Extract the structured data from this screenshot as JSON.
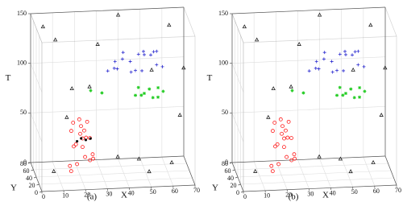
{
  "chart_data": [
    {
      "type": "scatter3d",
      "caption": "(a)",
      "xlabel": "X",
      "ylabel": "Y",
      "zlabel": "T",
      "xlim": [
        0,
        70
      ],
      "ylim": [
        0,
        80
      ],
      "zlim": [
        0,
        150
      ],
      "xticks": [
        0,
        10,
        20,
        30,
        40,
        50,
        60,
        70
      ],
      "yticks": [
        0,
        20,
        40,
        60,
        80
      ],
      "zticks": [
        0,
        50,
        100,
        150
      ],
      "grid": true,
      "series": [
        {
          "color": "#2b2bd0",
          "marker": "plus",
          "x": [
            35,
            40,
            45,
            50,
            55,
            38,
            42,
            48,
            53,
            58,
            36,
            44,
            52,
            47,
            41,
            56,
            33,
            49
          ],
          "y": [
            30,
            45,
            35,
            50,
            40,
            55,
            25,
            60,
            30,
            45,
            40,
            50,
            35,
            20,
            65,
            55,
            45,
            40
          ],
          "z": [
            110,
            120,
            105,
            115,
            108,
            100,
            118,
            112,
            125,
            104,
            113,
            98,
            120,
            110,
            106,
            116,
            102,
            122
          ]
        },
        {
          "color": "#22cc22",
          "marker": "star",
          "x": [
            45,
            48,
            52,
            55,
            58,
            50,
            47,
            53,
            56,
            30,
            25
          ],
          "y": [
            35,
            40,
            45,
            30,
            40,
            50,
            45,
            35,
            45,
            40,
            42
          ],
          "z": [
            80,
            78,
            82,
            79,
            81,
            76,
            84,
            77,
            83,
            82,
            84
          ]
        },
        {
          "color": "#ff1a1a",
          "marker": "circle",
          "x": [
            15,
            18,
            22,
            25,
            17,
            20,
            24,
            16,
            21,
            23,
            19,
            15,
            25,
            18,
            22,
            20,
            16,
            24,
            21,
            19
          ],
          "y": [
            25,
            30,
            35,
            28,
            38,
            22,
            32,
            40,
            26,
            36,
            30,
            34,
            24,
            38,
            28,
            33,
            27,
            31,
            37,
            23
          ],
          "z": [
            10,
            15,
            20,
            25,
            30,
            35,
            40,
            45,
            50,
            55,
            60,
            12,
            22,
            32,
            42,
            52,
            58,
            18,
            38,
            48
          ]
        },
        {
          "color": "#111111",
          "marker": "dot",
          "x": [
            18,
            20,
            22,
            24
          ],
          "y": [
            30,
            32,
            30,
            28
          ],
          "z": [
            38,
            40,
            39,
            41
          ]
        },
        {
          "color": "#222222",
          "marker": "triangle",
          "x": [
            5,
            10,
            15,
            60,
            65,
            55,
            30,
            35,
            68,
            8,
            45,
            62,
            25,
            50,
            12,
            40
          ],
          "y": [
            70,
            60,
            20,
            10,
            30,
            75,
            70,
            5,
            50,
            40,
            10,
            60,
            50,
            15,
            10,
            80
          ],
          "z": [
            140,
            130,
            95,
            20,
            60,
            90,
            120,
            30,
            100,
            5,
            25,
            140,
            85,
            10,
            70,
            145
          ]
        }
      ]
    },
    {
      "type": "scatter3d",
      "caption": "(b)",
      "xlabel": "X",
      "ylabel": "Y",
      "zlabel": "T",
      "xlim": [
        0,
        70
      ],
      "ylim": [
        0,
        80
      ],
      "zlim": [
        0,
        150
      ],
      "xticks": [
        0,
        10,
        20,
        30,
        40,
        50,
        60,
        70
      ],
      "yticks": [
        0,
        20,
        40,
        60,
        80
      ],
      "zticks": [
        0,
        50,
        100,
        150
      ],
      "grid": true,
      "series": [
        {
          "color": "#2b2bd0",
          "marker": "plus",
          "x": [
            35,
            40,
            45,
            50,
            55,
            38,
            42,
            48,
            53,
            58,
            36,
            44,
            52,
            47,
            41,
            56,
            33,
            49
          ],
          "y": [
            30,
            45,
            35,
            50,
            40,
            55,
            25,
            60,
            30,
            45,
            40,
            50,
            35,
            20,
            65,
            55,
            45,
            40
          ],
          "z": [
            110,
            120,
            105,
            115,
            108,
            100,
            118,
            112,
            125,
            104,
            113,
            98,
            120,
            110,
            106,
            116,
            102,
            122
          ]
        },
        {
          "color": "#22cc22",
          "marker": "star",
          "x": [
            45,
            48,
            52,
            55,
            58,
            50,
            47,
            53,
            56,
            30,
            25
          ],
          "y": [
            35,
            40,
            45,
            30,
            40,
            50,
            45,
            35,
            45,
            40,
            42
          ],
          "z": [
            80,
            78,
            82,
            79,
            81,
            76,
            84,
            77,
            83,
            82,
            84
          ]
        },
        {
          "color": "#ff1a1a",
          "marker": "circle",
          "x": [
            15,
            18,
            22,
            25,
            17,
            20,
            24,
            16,
            21,
            23,
            19,
            15,
            25,
            18,
            22,
            20,
            16,
            24,
            21,
            19
          ],
          "y": [
            25,
            30,
            35,
            28,
            38,
            22,
            32,
            40,
            26,
            36,
            30,
            34,
            24,
            38,
            28,
            33,
            27,
            31,
            37,
            23
          ],
          "z": [
            10,
            15,
            20,
            25,
            30,
            35,
            40,
            45,
            50,
            55,
            60,
            12,
            22,
            32,
            42,
            52,
            58,
            18,
            38,
            48
          ]
        },
        {
          "color": "#222222",
          "marker": "triangle",
          "x": [
            5,
            10,
            15,
            60,
            65,
            55,
            30,
            35,
            68,
            8,
            45,
            62,
            25,
            50,
            12,
            40
          ],
          "y": [
            70,
            60,
            20,
            10,
            30,
            75,
            70,
            5,
            50,
            40,
            10,
            60,
            50,
            15,
            10,
            80
          ],
          "z": [
            140,
            130,
            95,
            20,
            60,
            90,
            120,
            30,
            100,
            5,
            25,
            140,
            85,
            10,
            70,
            145
          ]
        }
      ]
    }
  ]
}
